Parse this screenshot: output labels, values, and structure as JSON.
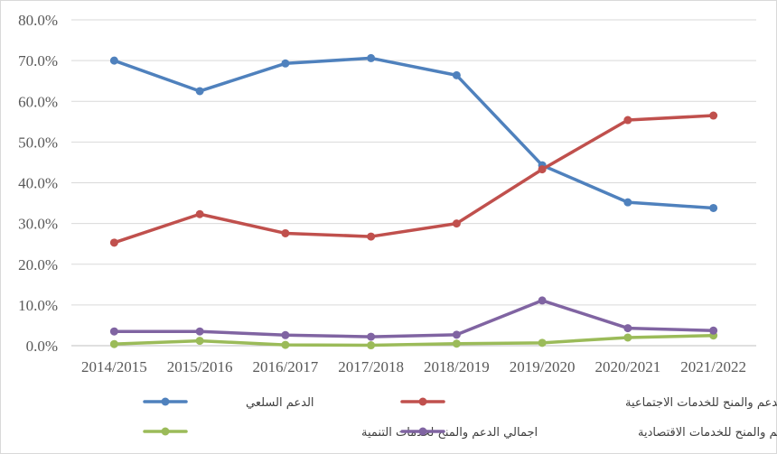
{
  "chart_data": {
    "type": "line",
    "categories": [
      "2014/2015",
      "2015/2016",
      "2016/2017",
      "2017/2018",
      "2018/2019",
      "2019/2020",
      "2020/2021",
      "2021/2022"
    ],
    "ylim": [
      0,
      80
    ],
    "yticks": [
      "0.0%",
      "10.0%",
      "20.0%",
      "30.0%",
      "40.0%",
      "50.0%",
      "60.0%",
      "70.0%",
      "80.0%"
    ],
    "grid": true,
    "legend": "bottom",
    "series": [
      {
        "name": "الدعم السلعي",
        "color": "#4f81bd",
        "values": [
          70.0,
          62.5,
          69.3,
          70.6,
          66.4,
          44.3,
          35.2,
          33.8
        ]
      },
      {
        "name": "الدعم والمنح للخدمات الاجتماعية",
        "color": "#c0504d",
        "values": [
          25.3,
          32.3,
          27.6,
          26.8,
          30.0,
          43.3,
          55.4,
          56.5
        ]
      },
      {
        "name": "اجمالي الدعم والمنح لخدمات التنمية",
        "color": "#9bbb59",
        "values": [
          0.4,
          1.2,
          0.2,
          0.1,
          0.5,
          0.7,
          2.0,
          2.5
        ]
      },
      {
        "name": "اجمالي الدعم والمنح للخدمات الاقتصادية",
        "color": "#8064a2",
        "values": [
          3.5,
          3.5,
          2.6,
          2.2,
          2.7,
          11.1,
          4.3,
          3.7
        ]
      }
    ]
  }
}
